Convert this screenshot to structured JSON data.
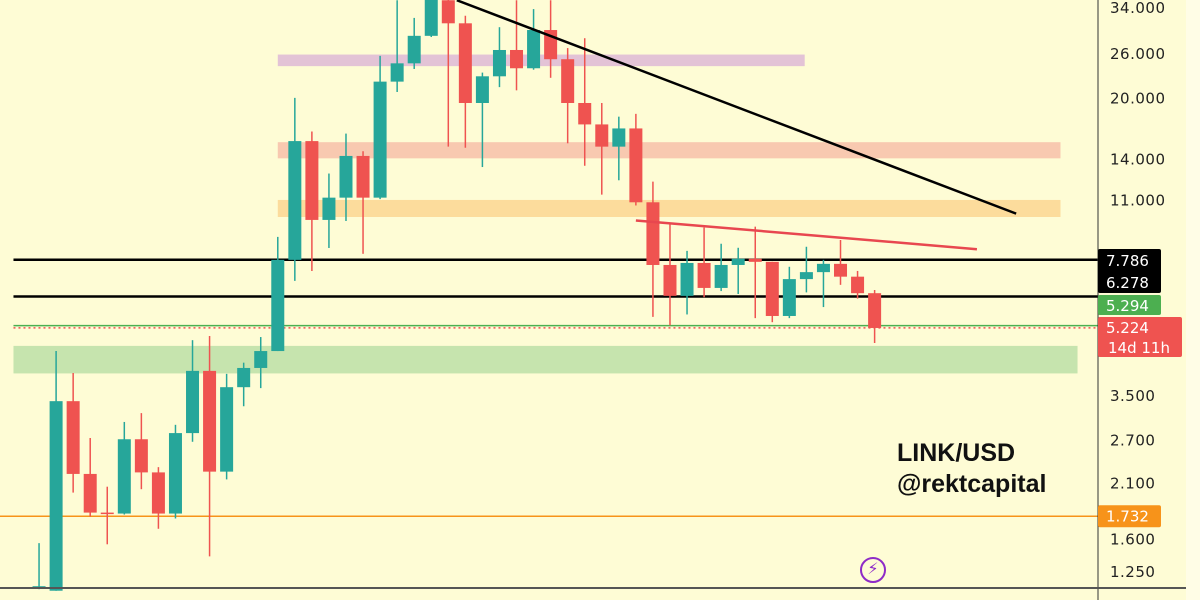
{
  "chart_data": {
    "type": "candlestick",
    "title": "LINK/USD",
    "subtitle": "@rektcapital",
    "y_scale": "log",
    "ylim": [
      1.138,
      35.65
    ],
    "xlim": [
      -2.29,
      62.1
    ],
    "grid": false,
    "y_ticks": [
      34,
      26,
      20,
      14,
      11,
      3.5,
      2.7,
      2.1,
      1.6,
      1.25
    ],
    "y_tick_labels": [
      "34.000",
      "26.000",
      "20.000",
      "14.000",
      "11.000",
      "3.500",
      "2.700",
      "2.100",
      "1.600",
      "1.250"
    ],
    "candles_ohlc": [
      [
        1.14,
        1.48,
        1.13,
        1.15
      ],
      [
        1.12,
        4.56,
        1.12,
        3.4
      ],
      [
        3.4,
        4.01,
        1.99,
        2.22
      ],
      [
        2.22,
        2.74,
        1.73,
        1.77
      ],
      [
        1.77,
        2.06,
        1.47,
        1.76
      ],
      [
        1.76,
        3.01,
        1.75,
        2.72
      ],
      [
        2.72,
        3.17,
        2.03,
        2.24
      ],
      [
        2.24,
        2.31,
        1.61,
        1.76
      ],
      [
        1.76,
        2.96,
        1.71,
        2.82
      ],
      [
        2.82,
        4.86,
        2.68,
        4.06
      ],
      [
        4.06,
        4.98,
        1.37,
        2.25
      ],
      [
        2.25,
        3.99,
        2.15,
        3.69
      ],
      [
        3.69,
        4.26,
        3.3,
        4.13
      ],
      [
        4.13,
        4.95,
        3.67,
        4.56
      ],
      [
        4.56,
        8.9,
        4.56,
        7.78
      ],
      [
        7.78,
        20.1,
        6.88,
        15.6
      ],
      [
        15.6,
        16.5,
        7.29,
        9.83
      ],
      [
        9.83,
        12.9,
        8.34,
        11.2
      ],
      [
        11.2,
        16.3,
        9.77,
        14.3
      ],
      [
        14.3,
        14.7,
        8.06,
        11.2
      ],
      [
        11.2,
        25.7,
        11.1,
        22.1
      ],
      [
        22.1,
        35.6,
        20.8,
        24.6
      ],
      [
        24.6,
        32.1,
        23.8,
        28.9
      ],
      [
        28.9,
        37.8,
        28.7,
        37.0
      ],
      [
        35.6,
        37.4,
        15.1,
        31.1
      ],
      [
        31.1,
        32.5,
        15.0,
        19.5
      ],
      [
        19.5,
        23.3,
        13.4,
        22.8
      ],
      [
        22.8,
        30.4,
        21.4,
        26.6
      ],
      [
        26.6,
        35.6,
        21.0,
        23.9
      ],
      [
        23.9,
        33.8,
        23.7,
        29.9
      ],
      [
        29.9,
        35.6,
        22.6,
        25.2
      ],
      [
        25.2,
        26.9,
        15.4,
        19.5
      ],
      [
        19.5,
        28.5,
        13.5,
        17.2
      ],
      [
        17.2,
        19.5,
        11.4,
        15.1
      ],
      [
        15.1,
        18.0,
        12.4,
        16.8
      ],
      [
        16.8,
        18.3,
        10.7,
        10.9
      ],
      [
        10.9,
        12.3,
        5.57,
        7.55
      ],
      [
        7.55,
        9.6,
        5.3,
        6.3
      ],
      [
        6.3,
        8.2,
        5.65,
        7.64
      ],
      [
        7.64,
        9.4,
        6.25,
        6.6
      ],
      [
        6.6,
        8.55,
        6.48,
        7.55
      ],
      [
        7.55,
        8.35,
        6.37,
        7.83
      ],
      [
        7.83,
        9.45,
        5.53,
        7.69
      ],
      [
        7.69,
        7.69,
        5.4,
        5.6
      ],
      [
        5.6,
        7.47,
        5.53,
        6.95
      ],
      [
        6.95,
        8.4,
        6.43,
        7.24
      ],
      [
        7.24,
        7.78,
        5.9,
        7.6
      ],
      [
        7.6,
        8.74,
        6.72,
        7.05
      ],
      [
        7.05,
        7.29,
        6.2,
        6.4
      ],
      [
        6.4,
        6.52,
        4.78,
        5.22
      ]
    ],
    "zones": [
      {
        "from": 24.2,
        "to": 25.9,
        "x_range": [
          14.0,
          44.9
        ],
        "color": "#e3c3d6"
      },
      {
        "from": 14.1,
        "to": 15.5,
        "x_range": [
          14.0,
          59.9
        ],
        "color": "#f8c9b0"
      },
      {
        "from": 10.0,
        "to": 11.05,
        "x_range": [
          14.0,
          59.9
        ],
        "color": "#fcdc9c"
      },
      {
        "from": 4.0,
        "to": 4.7,
        "x_range": [
          -1.5,
          60.9
        ],
        "color": "#c6e4ae"
      }
    ],
    "horizontal_levels": [
      {
        "value": 7.786,
        "label": "7.786",
        "color": "#000000",
        "style": "solid"
      },
      {
        "value": 6.278,
        "label": "6.278",
        "color": "#000000",
        "style": "solid"
      },
      {
        "value": 5.294,
        "label": "5.294",
        "color": "#4caf50",
        "style": "solid"
      },
      {
        "value": 5.224,
        "label": "5.224",
        "color": "#ef5350",
        "style": "dotted",
        "countdown": "14d 11h"
      },
      {
        "value": 1.732,
        "label": "1.732",
        "color": "#f7931a",
        "style": "solid"
      }
    ],
    "trendlines": [
      {
        "points": [
          [
            24.5,
            35.6
          ],
          [
            57.3,
            10.2
          ]
        ],
        "color": "#000000"
      },
      {
        "points": [
          [
            35.0,
            9.8
          ],
          [
            55.0,
            8.28
          ]
        ],
        "color": "#e8474f"
      }
    ]
  },
  "colors": {
    "up": "#26a69a",
    "down": "#ef5350",
    "background": "#fefcd5"
  },
  "watermark": {
    "pair": "LINK/USD",
    "author": "@rektcapital"
  },
  "icon": "lightning-bolt-icon"
}
